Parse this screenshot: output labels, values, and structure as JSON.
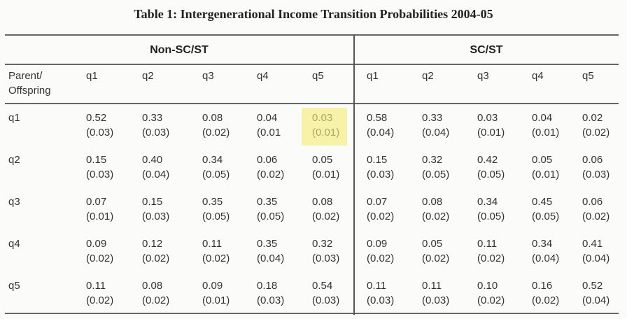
{
  "title": "Table 1: Intergenerational Income Transition Probabilities 2004-05",
  "groups": [
    "Non-SC/ST",
    "SC/ST"
  ],
  "row_header_label": [
    "Parent/",
    "Offspring"
  ],
  "columns": [
    "q1",
    "q2",
    "q3",
    "q4",
    "q5"
  ],
  "highlight_color": "#f7f2a8",
  "highlighted_cell": {
    "group": "Non-SC/ST",
    "row": "q1",
    "column": "q5"
  },
  "rows": [
    {
      "label": "q1",
      "non_sc_st": [
        [
          "0.52",
          "(0.03)"
        ],
        [
          "0.33",
          "(0.03)"
        ],
        [
          "0.08",
          "(0.02)"
        ],
        [
          "0.04",
          "(0.01"
        ],
        [
          "0.03",
          "(0.01)"
        ]
      ],
      "sc_st": [
        [
          "0.58",
          "(0.04)"
        ],
        [
          "0.33",
          "(0.04)"
        ],
        [
          "0.03",
          "(0.01)"
        ],
        [
          "0.04",
          "(0.01)"
        ],
        [
          "0.02",
          "(0.02)"
        ]
      ]
    },
    {
      "label": "q2",
      "non_sc_st": [
        [
          "0.15",
          "(0.03)"
        ],
        [
          "0.40",
          "(0.04)"
        ],
        [
          "0.34",
          "(0.05)"
        ],
        [
          "0.06",
          "(0.02)"
        ],
        [
          "0.05",
          "(0.01)"
        ]
      ],
      "sc_st": [
        [
          "0.15",
          "(0.03)"
        ],
        [
          "0.32",
          "(0.05)"
        ],
        [
          "0.42",
          "(0.05)"
        ],
        [
          "0.05",
          "(0.01)"
        ],
        [
          "0.06",
          "(0.03)"
        ]
      ]
    },
    {
      "label": "q3",
      "non_sc_st": [
        [
          "0.07",
          "(0.01)"
        ],
        [
          "0.15",
          "(0.03)"
        ],
        [
          "0.35",
          "(0.05)"
        ],
        [
          "0.35",
          "(0.05)"
        ],
        [
          "0.08",
          "(0.02)"
        ]
      ],
      "sc_st": [
        [
          "0.07",
          "(0.02)"
        ],
        [
          "0.08",
          "(0.02)"
        ],
        [
          "0.34",
          "(0.05)"
        ],
        [
          "0.45",
          "(0.05)"
        ],
        [
          "0.06",
          "(0.02)"
        ]
      ]
    },
    {
      "label": "q4",
      "non_sc_st": [
        [
          "0.09",
          "(0.02)"
        ],
        [
          "0.12",
          "(0.02)"
        ],
        [
          "0.11",
          "(0.02)"
        ],
        [
          "0.35",
          "(0.04)"
        ],
        [
          "0.32",
          "(0.03)"
        ]
      ],
      "sc_st": [
        [
          "0.09",
          "(0.02)"
        ],
        [
          "0.05",
          "(0.02)"
        ],
        [
          "0.11",
          "(0.02)"
        ],
        [
          "0.34",
          "(0.04)"
        ],
        [
          "0.41",
          "(0.04)"
        ]
      ]
    },
    {
      "label": "q5",
      "non_sc_st": [
        [
          "0.11",
          "(0.02)"
        ],
        [
          "0.08",
          "(0.02)"
        ],
        [
          "0.09",
          "(0.01)"
        ],
        [
          "0.18",
          "(0.03)"
        ],
        [
          "0.54",
          "(0.03)"
        ]
      ],
      "sc_st": [
        [
          "0.11",
          "(0.03)"
        ],
        [
          "0.11",
          "(0.03)"
        ],
        [
          "0.10",
          "(0.02)"
        ],
        [
          "0.16",
          "(0.02)"
        ],
        [
          "0.52",
          "(0.04)"
        ]
      ]
    }
  ]
}
